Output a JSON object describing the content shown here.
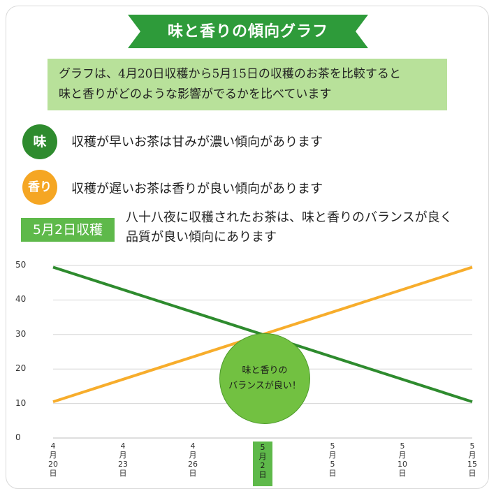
{
  "title": "味と香りの傾向グラフ",
  "intro": {
    "line1": "グラフは、4月20日収穫から5月15日の収穫のお茶を比較すると",
    "line2": "味と香りがどのような影響がでるかを比べています"
  },
  "bullets": [
    {
      "badge": "味",
      "text": "収穫が早いお茶は甘みが濃い傾向があります",
      "color": "#2e8b2e"
    },
    {
      "badge": "香り",
      "text": "収穫が遅いお茶は香りが良い傾向があります",
      "color": "#f5a623"
    }
  ],
  "highlight": {
    "tag": "5月2日収穫",
    "line1": "八十八夜に収穫されたお茶は、味と香りのバランスが良く",
    "line2": "品質が良い傾向にあります"
  },
  "bubble": {
    "line1": "味と香りの",
    "line2": "バランスが良い！"
  },
  "colors": {
    "taste": "#2e8b2e",
    "aroma": "#f7ad2c",
    "accent": "#5eb94a",
    "ribbon": "#2e9b3a"
  },
  "chart_data": {
    "type": "line",
    "categories": [
      "4月20日",
      "4月23日",
      "4月26日",
      "5月2日",
      "5月5日",
      "5月10日",
      "5月15日"
    ],
    "x_positions": [
      0,
      1,
      2,
      3,
      4,
      5,
      6
    ],
    "x_labels": [
      [
        "4",
        "月",
        "20",
        "日"
      ],
      [
        "4",
        "月",
        "23",
        "日"
      ],
      [
        "4",
        "月",
        "26",
        "日"
      ],
      [
        "5",
        "月",
        "2",
        "日"
      ],
      [
        "5",
        "月",
        "5",
        "日"
      ],
      [
        "5",
        "月",
        "10",
        "日"
      ],
      [
        "5",
        "月",
        "15",
        "日"
      ]
    ],
    "highlight_category": "5月2日",
    "series": [
      {
        "values_at_ends": [
          49.5,
          10.5
        ],
        "color": "#2e8b2e"
      },
      {
        "values_at_ends": [
          10.5,
          49.5
        ],
        "color": "#f7ad2c"
      }
    ],
    "yticks": [
      "0",
      "10",
      "20",
      "30",
      "40",
      "50"
    ],
    "ylim": [
      0,
      50
    ],
    "grid": true
  }
}
